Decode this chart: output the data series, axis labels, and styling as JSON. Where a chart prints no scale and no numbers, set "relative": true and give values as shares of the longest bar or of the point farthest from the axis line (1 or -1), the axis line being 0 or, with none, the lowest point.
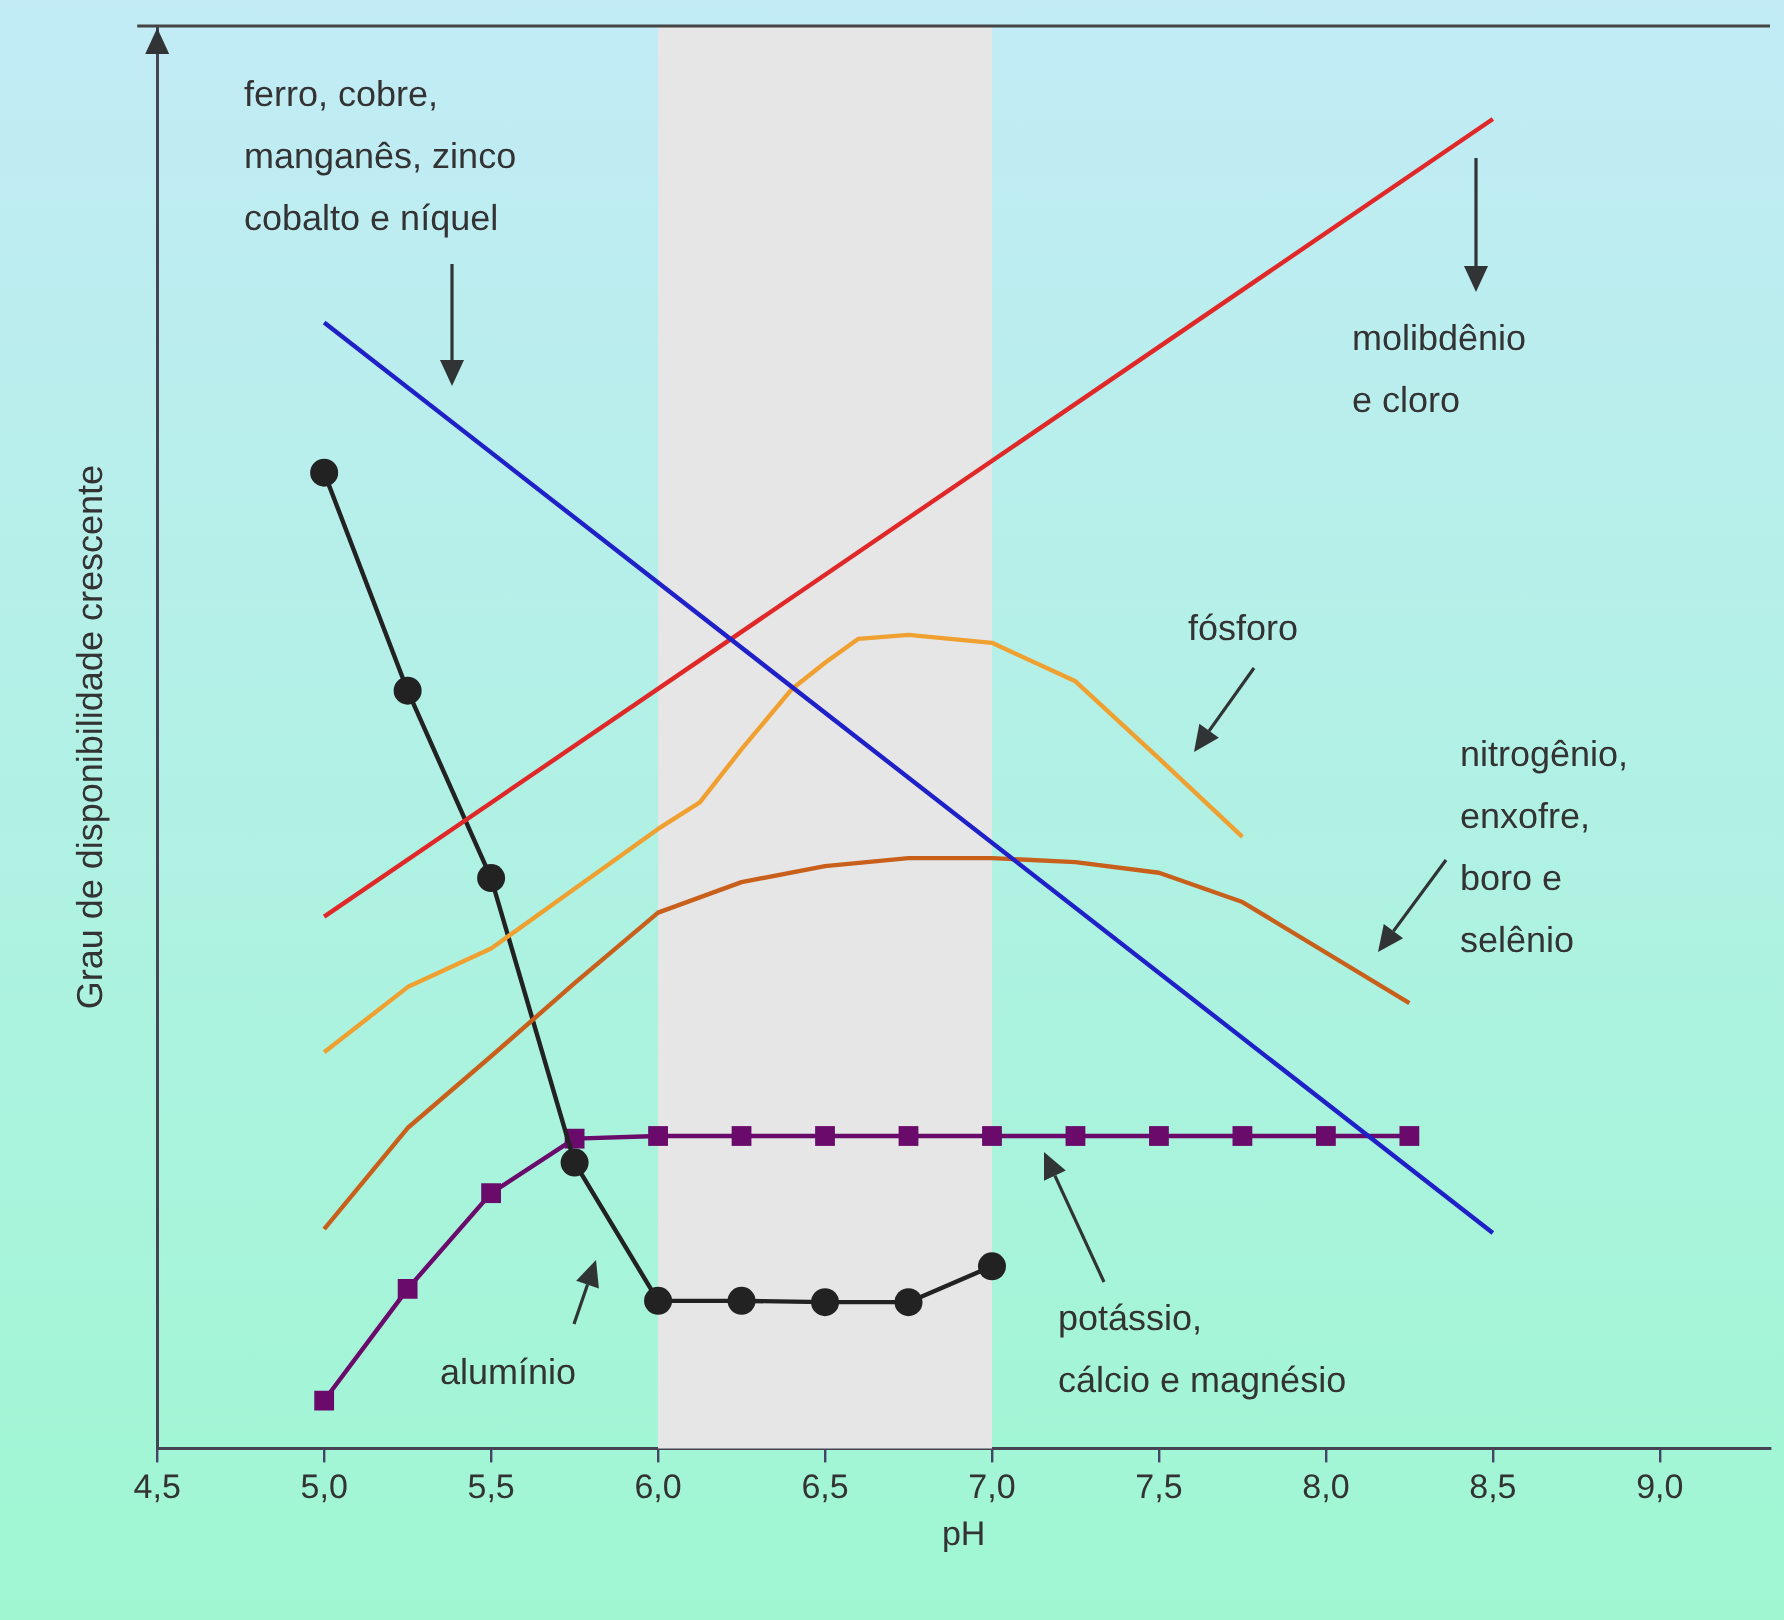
{
  "chart_data": {
    "type": "line",
    "relative": true,
    "xlabel": "pH",
    "ylabel": "Grau de disponibilidade crescente",
    "xlim": [
      4.5,
      9.33
    ],
    "xticks": [
      {
        "value": 4.5,
        "label": "4,5"
      },
      {
        "value": 5.0,
        "label": "5,0"
      },
      {
        "value": 5.5,
        "label": "5,5"
      },
      {
        "value": 6.0,
        "label": "6,0"
      },
      {
        "value": 6.5,
        "label": "6,5"
      },
      {
        "value": 7.0,
        "label": "7,0"
      },
      {
        "value": 7.5,
        "label": "7,5"
      },
      {
        "value": 8.0,
        "label": "8,0"
      },
      {
        "value": 8.5,
        "label": "8,5"
      },
      {
        "value": 9.0,
        "label": "9,0"
      }
    ],
    "grid": false,
    "legend": false,
    "line_style": "solid",
    "bands": [
      {
        "axis": "x",
        "from": 6.0,
        "to": 7.0,
        "color": "#e6e6e6"
      }
    ],
    "series": [
      {
        "color": "#2020c8",
        "marker": "none",
        "x": [
          5.0,
          8.5
        ],
        "values": [
          0.847,
          0.162
        ]
      },
      {
        "color": "#e02828",
        "marker": "none",
        "x": [
          5.0,
          8.5
        ],
        "values": [
          0.4,
          1.0
        ]
      },
      {
        "color": "#f0a030",
        "marker": "none",
        "x": [
          5.0,
          5.25,
          5.5,
          5.75,
          6.0,
          6.125,
          6.25,
          6.4,
          6.5,
          6.6,
          6.75,
          7.0,
          7.25,
          7.5,
          7.75
        ],
        "values": [
          0.298,
          0.347,
          0.376,
          0.421,
          0.466,
          0.486,
          0.526,
          0.571,
          0.591,
          0.609,
          0.612,
          0.606,
          0.577,
          0.519,
          0.46
        ]
      },
      {
        "color": "#c8601c",
        "marker": "none",
        "x": [
          5.0,
          5.25,
          5.5,
          5.75,
          6.0,
          6.25,
          6.5,
          6.75,
          7.0,
          7.25,
          7.5,
          7.75,
          8.25
        ],
        "values": [
          0.165,
          0.241,
          0.295,
          0.35,
          0.403,
          0.426,
          0.438,
          0.444,
          0.444,
          0.441,
          0.433,
          0.411,
          0.335
        ]
      },
      {
        "color": "#222222",
        "marker": "circle",
        "x": [
          5.0,
          5.25,
          5.5,
          5.75,
          6.0,
          6.25,
          6.5,
          6.75,
          7.0
        ],
        "values": [
          0.734,
          0.57,
          0.429,
          0.215,
          0.111,
          0.111,
          0.11,
          0.11,
          0.137
        ]
      },
      {
        "color": "#6a0a6a",
        "marker": "square",
        "x": [
          5.0,
          5.25,
          5.5,
          5.75,
          6.0,
          6.25,
          6.5,
          6.75,
          7.0,
          7.25,
          7.5,
          7.75,
          8.0,
          8.25
        ],
        "values": [
          0.036,
          0.12,
          0.192,
          0.233,
          0.235,
          0.235,
          0.235,
          0.235,
          0.235,
          0.235,
          0.235,
          0.235,
          0.235,
          0.235
        ]
      }
    ],
    "annotations": [
      "ferro, cobre,\nmanganês, zinco\ncobalto e níquel",
      "molibdênio\ne cloro",
      "fósforo",
      "nitrogênio,\nenxofre,\nboro e\nselênio",
      "potássio,\ncálcio e magnésio",
      "alumínio"
    ]
  }
}
